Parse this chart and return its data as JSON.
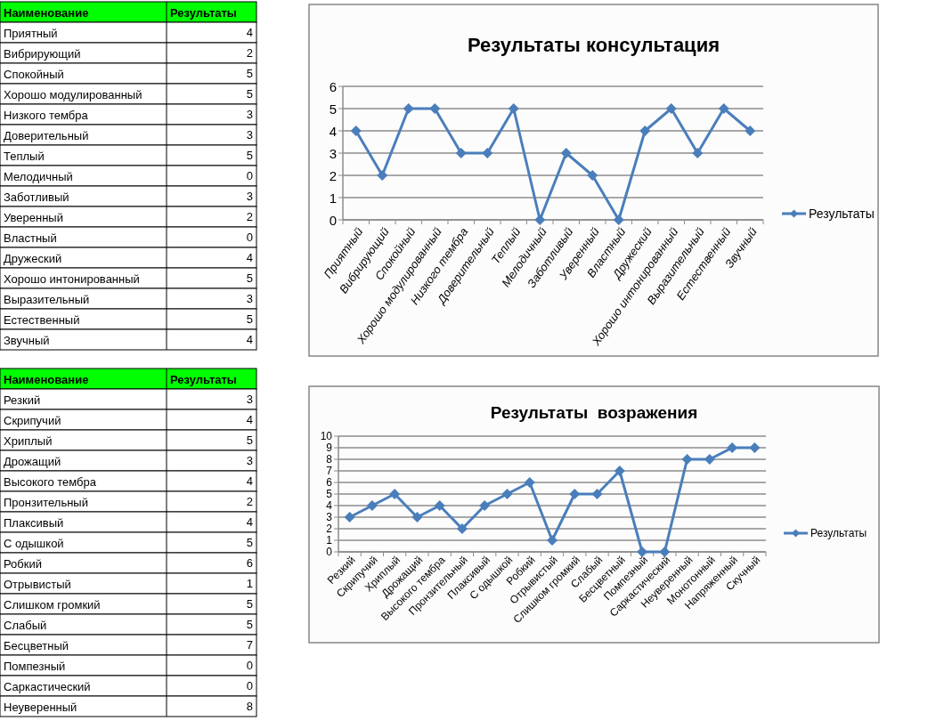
{
  "chart_data": [
    {
      "type": "other",
      "xlabel": "Наименование",
      "categories": [
        "Приятный",
        "Вибрирующий",
        "Спокойный",
        "Хорошо модулированный",
        "Низкого тембра",
        "Доверительный",
        "Теплый",
        "Мелодичный",
        "Заботливый",
        "Уверенный",
        "Властный",
        "Дружеский",
        "Хорошо интонированный",
        "Выразительный",
        "Естественный",
        "Звучный"
      ],
      "series": [
        {
          "name": "Результаты",
          "values": [
            4,
            2,
            5,
            5,
            3,
            3,
            5,
            0,
            3,
            2,
            0,
            4,
            5,
            3,
            5,
            4
          ]
        }
      ],
      "data_labels": true
    },
    {
      "type": "line",
      "title": "Результаты консультация",
      "categories": [
        "Приятный",
        "Вибрирующий",
        "Спокойный",
        "Хорошо модулированный",
        "Низкого тембра",
        "Доверительный",
        "Теплый",
        "Мелодичный",
        "Заботливый",
        "Уверенный",
        "Властный",
        "Дружеский",
        "Хорошо интонированный",
        "Выразительный",
        "Естественный",
        "Звучный"
      ],
      "series": [
        {
          "name": "Результаты",
          "color": "#4a7ebb",
          "values": [
            4,
            2,
            5,
            5,
            3,
            3,
            5,
            0,
            3,
            2,
            0,
            4,
            5,
            3,
            5,
            4
          ]
        }
      ],
      "ylim": [
        0,
        6
      ],
      "yticks": [
        0,
        1,
        2,
        3,
        4,
        5,
        6
      ],
      "grid": "y",
      "legend": "right",
      "marker": "diamond"
    },
    {
      "type": "other",
      "xlabel": "Наименование",
      "categories": [
        "Резкий",
        "Скрипучий",
        "Хриплый",
        "Дрожащий",
        "Высокого тембра",
        "Пронзительный",
        "Плаксивый",
        "С одышкой",
        "Робкий",
        "Отрывистый",
        "Слишком громкий",
        "Слабый",
        "Бесцветный",
        "Помпезный",
        "Саркастический",
        "Неуверенный"
      ],
      "series": [
        {
          "name": "Результаты",
          "values": [
            3,
            4,
            5,
            3,
            4,
            2,
            4,
            5,
            6,
            1,
            5,
            5,
            7,
            0,
            0,
            8
          ]
        }
      ],
      "data_labels": true
    },
    {
      "type": "line",
      "title": "Результаты  возражения",
      "categories": [
        "Резкий",
        "Скрипучий",
        "Хриплый",
        "Дрожащий",
        "Высокого тембра",
        "Пронзительный",
        "Плаксивый",
        "С одышкой",
        "Робкий",
        "Отрывистый",
        "Слишком громкий",
        "Слабый",
        "Бесцветный",
        "Помпезный",
        "Саркастический",
        "Неуверенный",
        "Монотонный",
        "Напряженный",
        "Скучный"
      ],
      "series": [
        {
          "name": "Результаты",
          "color": "#4a7ebb",
          "values": [
            3,
            4,
            5,
            3,
            4,
            2,
            4,
            5,
            6,
            1,
            5,
            5,
            7,
            0,
            0,
            8,
            8,
            9,
            9
          ]
        }
      ],
      "ylim": [
        0,
        10
      ],
      "yticks": [
        0,
        1,
        2,
        3,
        4,
        5,
        6,
        7,
        8,
        9,
        10
      ],
      "grid": "y",
      "legend": "right",
      "marker": "diamond"
    }
  ]
}
